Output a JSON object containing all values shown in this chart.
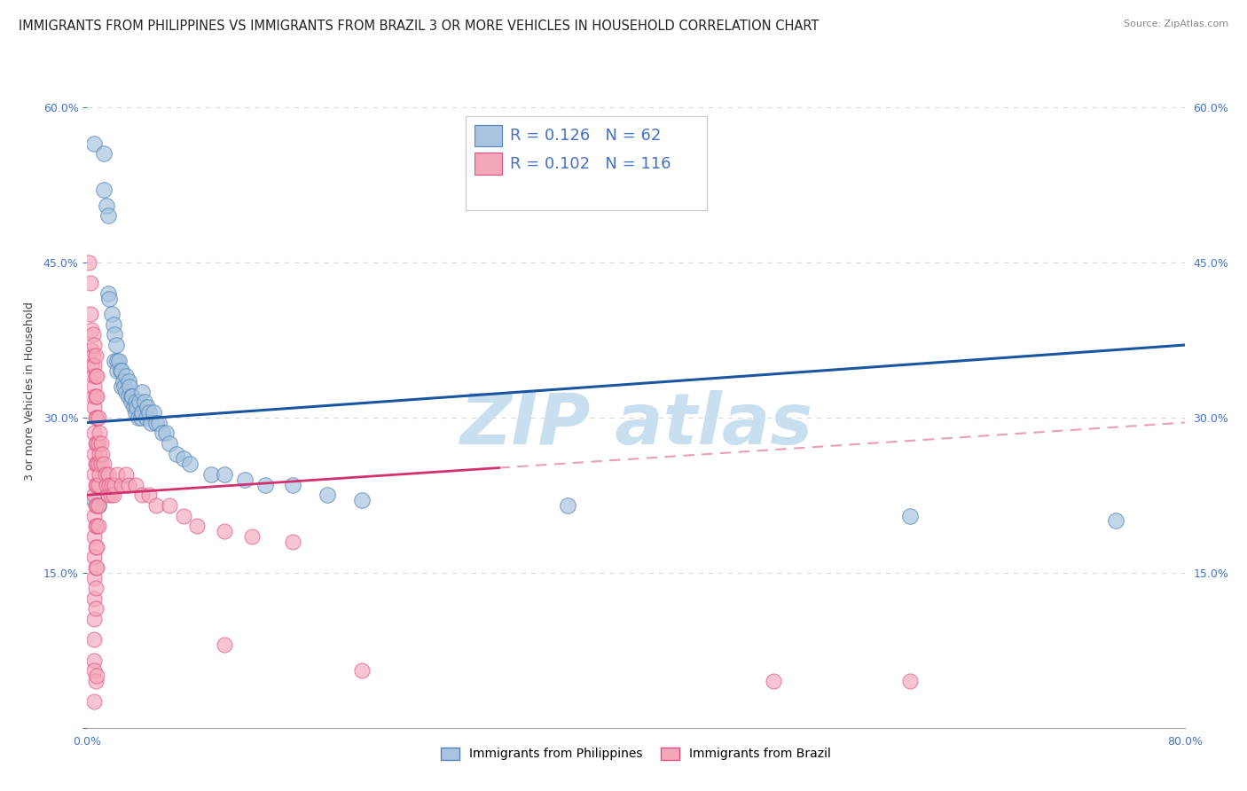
{
  "title": "IMMIGRANTS FROM PHILIPPINES VS IMMIGRANTS FROM BRAZIL 3 OR MORE VEHICLES IN HOUSEHOLD CORRELATION CHART",
  "source": "Source: ZipAtlas.com",
  "ylabel": "3 or more Vehicles in Household",
  "xmin": 0.0,
  "xmax": 0.8,
  "ymin": 0.0,
  "ymax": 0.65,
  "legend_entries": [
    {
      "label": "Immigrants from Philippines",
      "color": "#a8c4e0",
      "edge": "#5585b5",
      "R": "0.126",
      "N": "62"
    },
    {
      "label": "Immigrants from Brazil",
      "color": "#f4a7b9",
      "edge": "#e05080",
      "R": "0.102",
      "N": "116"
    }
  ],
  "scatter_philippines": [
    [
      0.005,
      0.565
    ],
    [
      0.012,
      0.555
    ],
    [
      0.012,
      0.52
    ],
    [
      0.014,
      0.505
    ],
    [
      0.015,
      0.495
    ],
    [
      0.015,
      0.42
    ],
    [
      0.016,
      0.415
    ],
    [
      0.018,
      0.4
    ],
    [
      0.019,
      0.39
    ],
    [
      0.02,
      0.38
    ],
    [
      0.02,
      0.355
    ],
    [
      0.021,
      0.37
    ],
    [
      0.022,
      0.355
    ],
    [
      0.022,
      0.345
    ],
    [
      0.023,
      0.355
    ],
    [
      0.024,
      0.345
    ],
    [
      0.025,
      0.345
    ],
    [
      0.025,
      0.33
    ],
    [
      0.026,
      0.335
    ],
    [
      0.027,
      0.33
    ],
    [
      0.028,
      0.34
    ],
    [
      0.028,
      0.325
    ],
    [
      0.03,
      0.335
    ],
    [
      0.03,
      0.32
    ],
    [
      0.031,
      0.33
    ],
    [
      0.032,
      0.32
    ],
    [
      0.032,
      0.315
    ],
    [
      0.033,
      0.32
    ],
    [
      0.034,
      0.31
    ],
    [
      0.035,
      0.315
    ],
    [
      0.035,
      0.305
    ],
    [
      0.036,
      0.31
    ],
    [
      0.037,
      0.3
    ],
    [
      0.038,
      0.315
    ],
    [
      0.039,
      0.3
    ],
    [
      0.04,
      0.325
    ],
    [
      0.04,
      0.305
    ],
    [
      0.042,
      0.315
    ],
    [
      0.043,
      0.3
    ],
    [
      0.044,
      0.31
    ],
    [
      0.045,
      0.305
    ],
    [
      0.046,
      0.295
    ],
    [
      0.048,
      0.305
    ],
    [
      0.05,
      0.295
    ],
    [
      0.052,
      0.295
    ],
    [
      0.055,
      0.285
    ],
    [
      0.057,
      0.285
    ],
    [
      0.06,
      0.275
    ],
    [
      0.065,
      0.265
    ],
    [
      0.07,
      0.26
    ],
    [
      0.075,
      0.255
    ],
    [
      0.09,
      0.245
    ],
    [
      0.1,
      0.245
    ],
    [
      0.115,
      0.24
    ],
    [
      0.13,
      0.235
    ],
    [
      0.15,
      0.235
    ],
    [
      0.175,
      0.225
    ],
    [
      0.2,
      0.22
    ],
    [
      0.35,
      0.215
    ],
    [
      0.6,
      0.205
    ],
    [
      0.75,
      0.2
    ],
    [
      0.005,
      0.22
    ],
    [
      0.008,
      0.215
    ]
  ],
  "scatter_brazil_real": [
    [
      0.001,
      0.45
    ],
    [
      0.002,
      0.43
    ],
    [
      0.002,
      0.4
    ],
    [
      0.003,
      0.385
    ],
    [
      0.003,
      0.365
    ],
    [
      0.003,
      0.35
    ],
    [
      0.004,
      0.38
    ],
    [
      0.004,
      0.36
    ],
    [
      0.004,
      0.34
    ],
    [
      0.004,
      0.32
    ],
    [
      0.005,
      0.37
    ],
    [
      0.005,
      0.35
    ],
    [
      0.005,
      0.33
    ],
    [
      0.005,
      0.31
    ],
    [
      0.005,
      0.285
    ],
    [
      0.005,
      0.265
    ],
    [
      0.005,
      0.245
    ],
    [
      0.005,
      0.225
    ],
    [
      0.005,
      0.205
    ],
    [
      0.005,
      0.185
    ],
    [
      0.005,
      0.165
    ],
    [
      0.005,
      0.145
    ],
    [
      0.005,
      0.125
    ],
    [
      0.005,
      0.105
    ],
    [
      0.005,
      0.085
    ],
    [
      0.005,
      0.065
    ],
    [
      0.006,
      0.36
    ],
    [
      0.006,
      0.34
    ],
    [
      0.006,
      0.32
    ],
    [
      0.006,
      0.3
    ],
    [
      0.006,
      0.275
    ],
    [
      0.006,
      0.255
    ],
    [
      0.006,
      0.235
    ],
    [
      0.006,
      0.215
    ],
    [
      0.006,
      0.195
    ],
    [
      0.006,
      0.175
    ],
    [
      0.006,
      0.155
    ],
    [
      0.006,
      0.135
    ],
    [
      0.006,
      0.115
    ],
    [
      0.007,
      0.34
    ],
    [
      0.007,
      0.32
    ],
    [
      0.007,
      0.3
    ],
    [
      0.007,
      0.275
    ],
    [
      0.007,
      0.255
    ],
    [
      0.007,
      0.235
    ],
    [
      0.007,
      0.215
    ],
    [
      0.007,
      0.195
    ],
    [
      0.007,
      0.175
    ],
    [
      0.007,
      0.155
    ],
    [
      0.008,
      0.3
    ],
    [
      0.008,
      0.275
    ],
    [
      0.008,
      0.255
    ],
    [
      0.008,
      0.235
    ],
    [
      0.008,
      0.215
    ],
    [
      0.008,
      0.195
    ],
    [
      0.009,
      0.285
    ],
    [
      0.009,
      0.265
    ],
    [
      0.009,
      0.245
    ],
    [
      0.01,
      0.275
    ],
    [
      0.01,
      0.255
    ],
    [
      0.011,
      0.265
    ],
    [
      0.012,
      0.255
    ],
    [
      0.013,
      0.245
    ],
    [
      0.014,
      0.235
    ],
    [
      0.015,
      0.245
    ],
    [
      0.015,
      0.225
    ],
    [
      0.016,
      0.235
    ],
    [
      0.017,
      0.225
    ],
    [
      0.018,
      0.235
    ],
    [
      0.019,
      0.225
    ],
    [
      0.02,
      0.235
    ],
    [
      0.022,
      0.245
    ],
    [
      0.025,
      0.235
    ],
    [
      0.028,
      0.245
    ],
    [
      0.03,
      0.235
    ],
    [
      0.035,
      0.235
    ],
    [
      0.04,
      0.225
    ],
    [
      0.045,
      0.225
    ],
    [
      0.05,
      0.215
    ],
    [
      0.06,
      0.215
    ],
    [
      0.07,
      0.205
    ],
    [
      0.08,
      0.195
    ],
    [
      0.1,
      0.19
    ],
    [
      0.12,
      0.185
    ],
    [
      0.15,
      0.18
    ],
    [
      0.005,
      0.055
    ],
    [
      0.006,
      0.045
    ],
    [
      0.007,
      0.05
    ],
    [
      0.005,
      0.025
    ],
    [
      0.1,
      0.08
    ],
    [
      0.2,
      0.055
    ],
    [
      0.5,
      0.045
    ],
    [
      0.6,
      0.045
    ]
  ],
  "line_philippines_color": "#1a56a0",
  "line_brazil_solid_color": "#d43070",
  "line_brazil_dash_color": "#e8a0b8",
  "watermark_text": "ZIP atlas",
  "watermark_color": "#c8dff0",
  "background_color": "#ffffff",
  "grid_color": "#d8d8d8",
  "text_color_blue": "#4472c4",
  "axis_color": "#aaaaaa",
  "title_fontsize": 10.5,
  "axis_label_fontsize": 9,
  "tick_fontsize": 9,
  "legend_fontsize": 13
}
